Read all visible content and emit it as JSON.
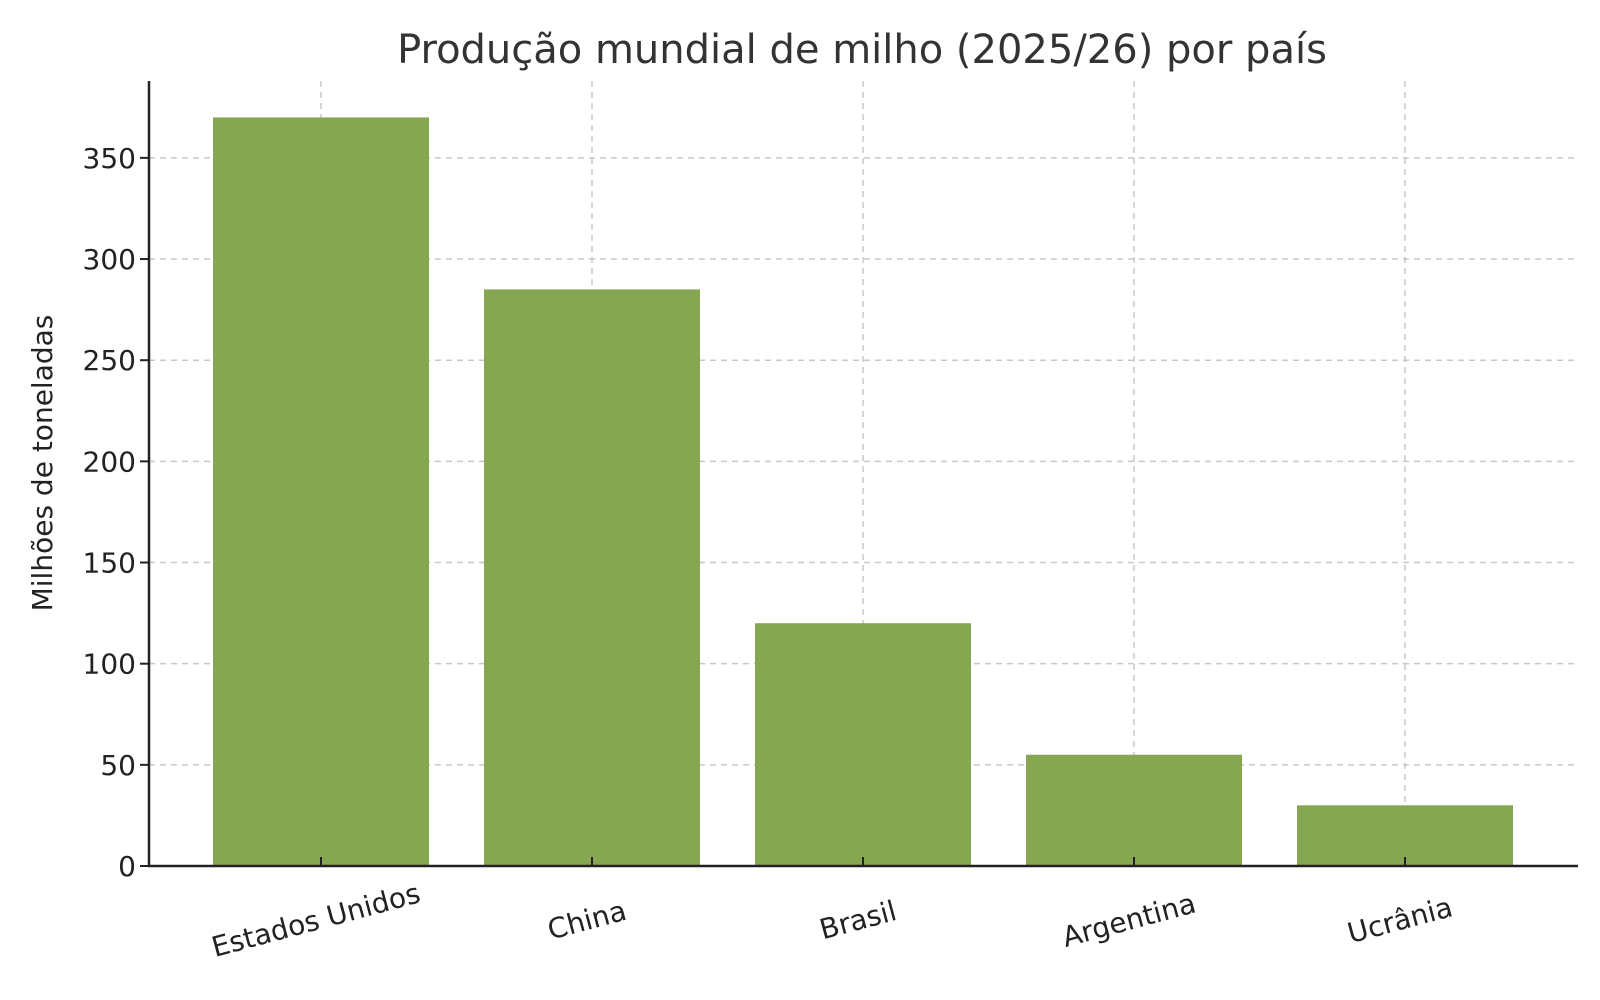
{
  "chart_data": {
    "type": "bar",
    "title": "Produção mundial de milho (2025/26) por país",
    "xlabel": "",
    "ylabel": "Milhões de toneladas",
    "categories": [
      "Estados Unidos",
      "China",
      "Brasil",
      "Argentina",
      "Ucrânia"
    ],
    "values": [
      370,
      285,
      120,
      55,
      30
    ],
    "ylim": [
      0,
      388
    ],
    "yticks": [
      0,
      50,
      100,
      150,
      200,
      250,
      300,
      350
    ],
    "grid": true,
    "bar_color": "#87a652",
    "legend": "none"
  }
}
